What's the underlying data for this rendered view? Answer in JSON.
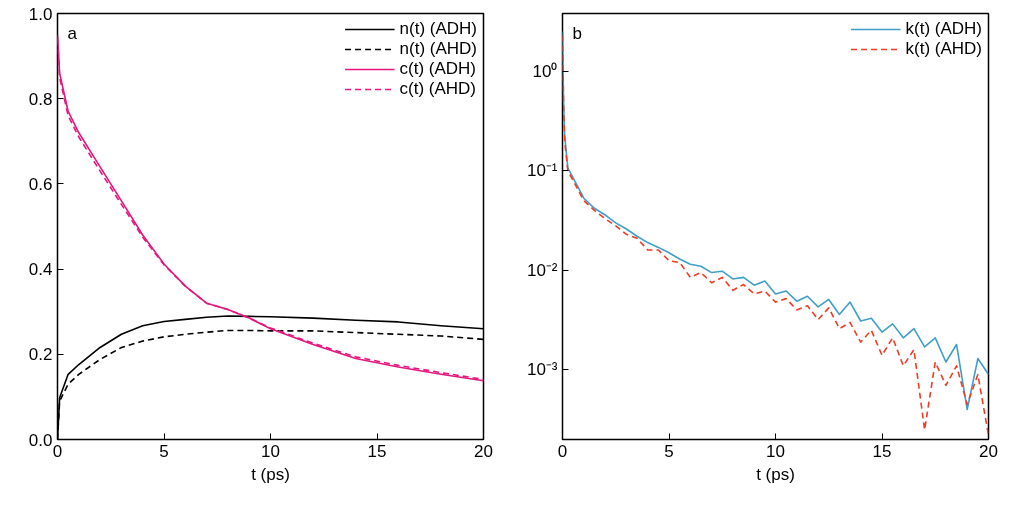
{
  "chart_data": [
    {
      "type": "line",
      "xlabel": "t (ps)",
      "annotations": [
        "a"
      ],
      "legend": "top right",
      "grid": false,
      "xlim": [
        0,
        20
      ],
      "xticks": [
        0,
        5,
        10,
        15,
        20
      ],
      "ylim": [
        0,
        1.0
      ],
      "yticks": [
        {
          "value": 0,
          "label": "0.0"
        },
        0.2,
        0.4,
        0.6,
        0.8,
        {
          "value": 1.0,
          "label": "1.0"
        }
      ],
      "x": [
        0,
        0.1,
        0.5,
        1,
        2,
        3,
        4,
        5,
        6,
        7,
        8,
        9,
        10,
        12,
        14,
        16,
        18,
        20
      ],
      "series": [
        {
          "name": "n(t) (ADH)",
          "color": "#000000",
          "line_style": "solid",
          "values": [
            0,
            0.098,
            0.153,
            0.176,
            0.216,
            0.247,
            0.267,
            0.277,
            0.282,
            0.287,
            0.29,
            0.289,
            0.288,
            0.285,
            0.28,
            0.276,
            0.267,
            0.26
          ]
        },
        {
          "name": "n(t) (AHD)",
          "color": "#000000",
          "line_style": "dashed",
          "values": [
            0,
            0.09,
            0.13,
            0.153,
            0.188,
            0.216,
            0.231,
            0.241,
            0.247,
            0.252,
            0.256,
            0.256,
            0.255,
            0.255,
            0.251,
            0.247,
            0.243,
            0.235
          ]
        },
        {
          "name": "c(t) (ADH)",
          "color": "#e5177e",
          "line_style": "solid",
          "values": [
            0.95,
            0.86,
            0.77,
            0.72,
            0.64,
            0.56,
            0.48,
            0.412,
            0.36,
            0.32,
            0.305,
            0.285,
            0.26,
            0.223,
            0.19,
            0.17,
            0.153,
            0.138
          ]
        },
        {
          "name": "c(t) (AHD)",
          "color": "#e5177e",
          "line_style": "dashed",
          "values": [
            0.94,
            0.85,
            0.76,
            0.71,
            0.63,
            0.552,
            0.475,
            0.41,
            0.36,
            0.32,
            0.305,
            0.285,
            0.262,
            0.226,
            0.194,
            0.174,
            0.157,
            0.141
          ]
        }
      ]
    },
    {
      "type": "line",
      "xlabel": "t (ps)",
      "annotations": [
        "b"
      ],
      "legend": "top right",
      "grid": false,
      "log": "y",
      "xlim": [
        0,
        20
      ],
      "xticks": [
        0,
        5,
        10,
        15,
        20
      ],
      "ylim": [
        0.0002,
        3.8
      ],
      "yticks": [
        {
          "value": 1,
          "label": "10⁰"
        },
        {
          "value": 0.1,
          "label": "10⁻¹"
        },
        {
          "value": 0.01,
          "label": "10⁻²"
        },
        {
          "value": 0.001,
          "label": "10⁻³"
        }
      ],
      "x": [
        0,
        0.05,
        0.1,
        0.25,
        0.5,
        1,
        1.5,
        2,
        2.5,
        3,
        3.5,
        4,
        4.5,
        5,
        5.5,
        6,
        6.5,
        7,
        7.5,
        8,
        8.5,
        9,
        9.5,
        10,
        10.5,
        11,
        11.5,
        12,
        12.5,
        13,
        13.5,
        14,
        14.5,
        15,
        15.5,
        16,
        16.5,
        17,
        17.5,
        18,
        18.5,
        19,
        19.5,
        20
      ],
      "series": [
        {
          "name": "k(t) (ADH)",
          "color": "#3f9fc9",
          "line_style": "solid",
          "values": [
            2.5,
            0.5,
            0.23,
            0.107,
            0.085,
            0.053,
            0.042,
            0.036,
            0.03,
            0.026,
            0.022,
            0.019,
            0.017,
            0.015,
            0.013,
            0.0115,
            0.011,
            0.0095,
            0.0098,
            0.0082,
            0.0085,
            0.0071,
            0.0078,
            0.0058,
            0.0062,
            0.0049,
            0.0055,
            0.0043,
            0.0051,
            0.0036,
            0.0048,
            0.0031,
            0.0033,
            0.0024,
            0.0029,
            0.0021,
            0.0026,
            0.0017,
            0.0021,
            0.0012,
            0.0018,
            0.0004,
            0.0013,
            0.0009
          ]
        },
        {
          "name": "k(t) (AHD)",
          "color": "#f03c24",
          "line_style": "dashed",
          "values": [
            2.3,
            0.45,
            0.2,
            0.1,
            0.08,
            0.05,
            0.04,
            0.033,
            0.028,
            0.023,
            0.021,
            0.016,
            0.016,
            0.0125,
            0.012,
            0.0085,
            0.0095,
            0.0075,
            0.0085,
            0.0063,
            0.0072,
            0.0058,
            0.0062,
            0.0048,
            0.0052,
            0.004,
            0.0044,
            0.0032,
            0.0042,
            0.0026,
            0.003,
            0.0019,
            0.0025,
            0.0014,
            0.0021,
            0.0011,
            0.0016,
            0.00025,
            0.0012,
            0.0007,
            0.0011,
            0.00045,
            0.0009,
            0.00022
          ]
        }
      ]
    }
  ]
}
